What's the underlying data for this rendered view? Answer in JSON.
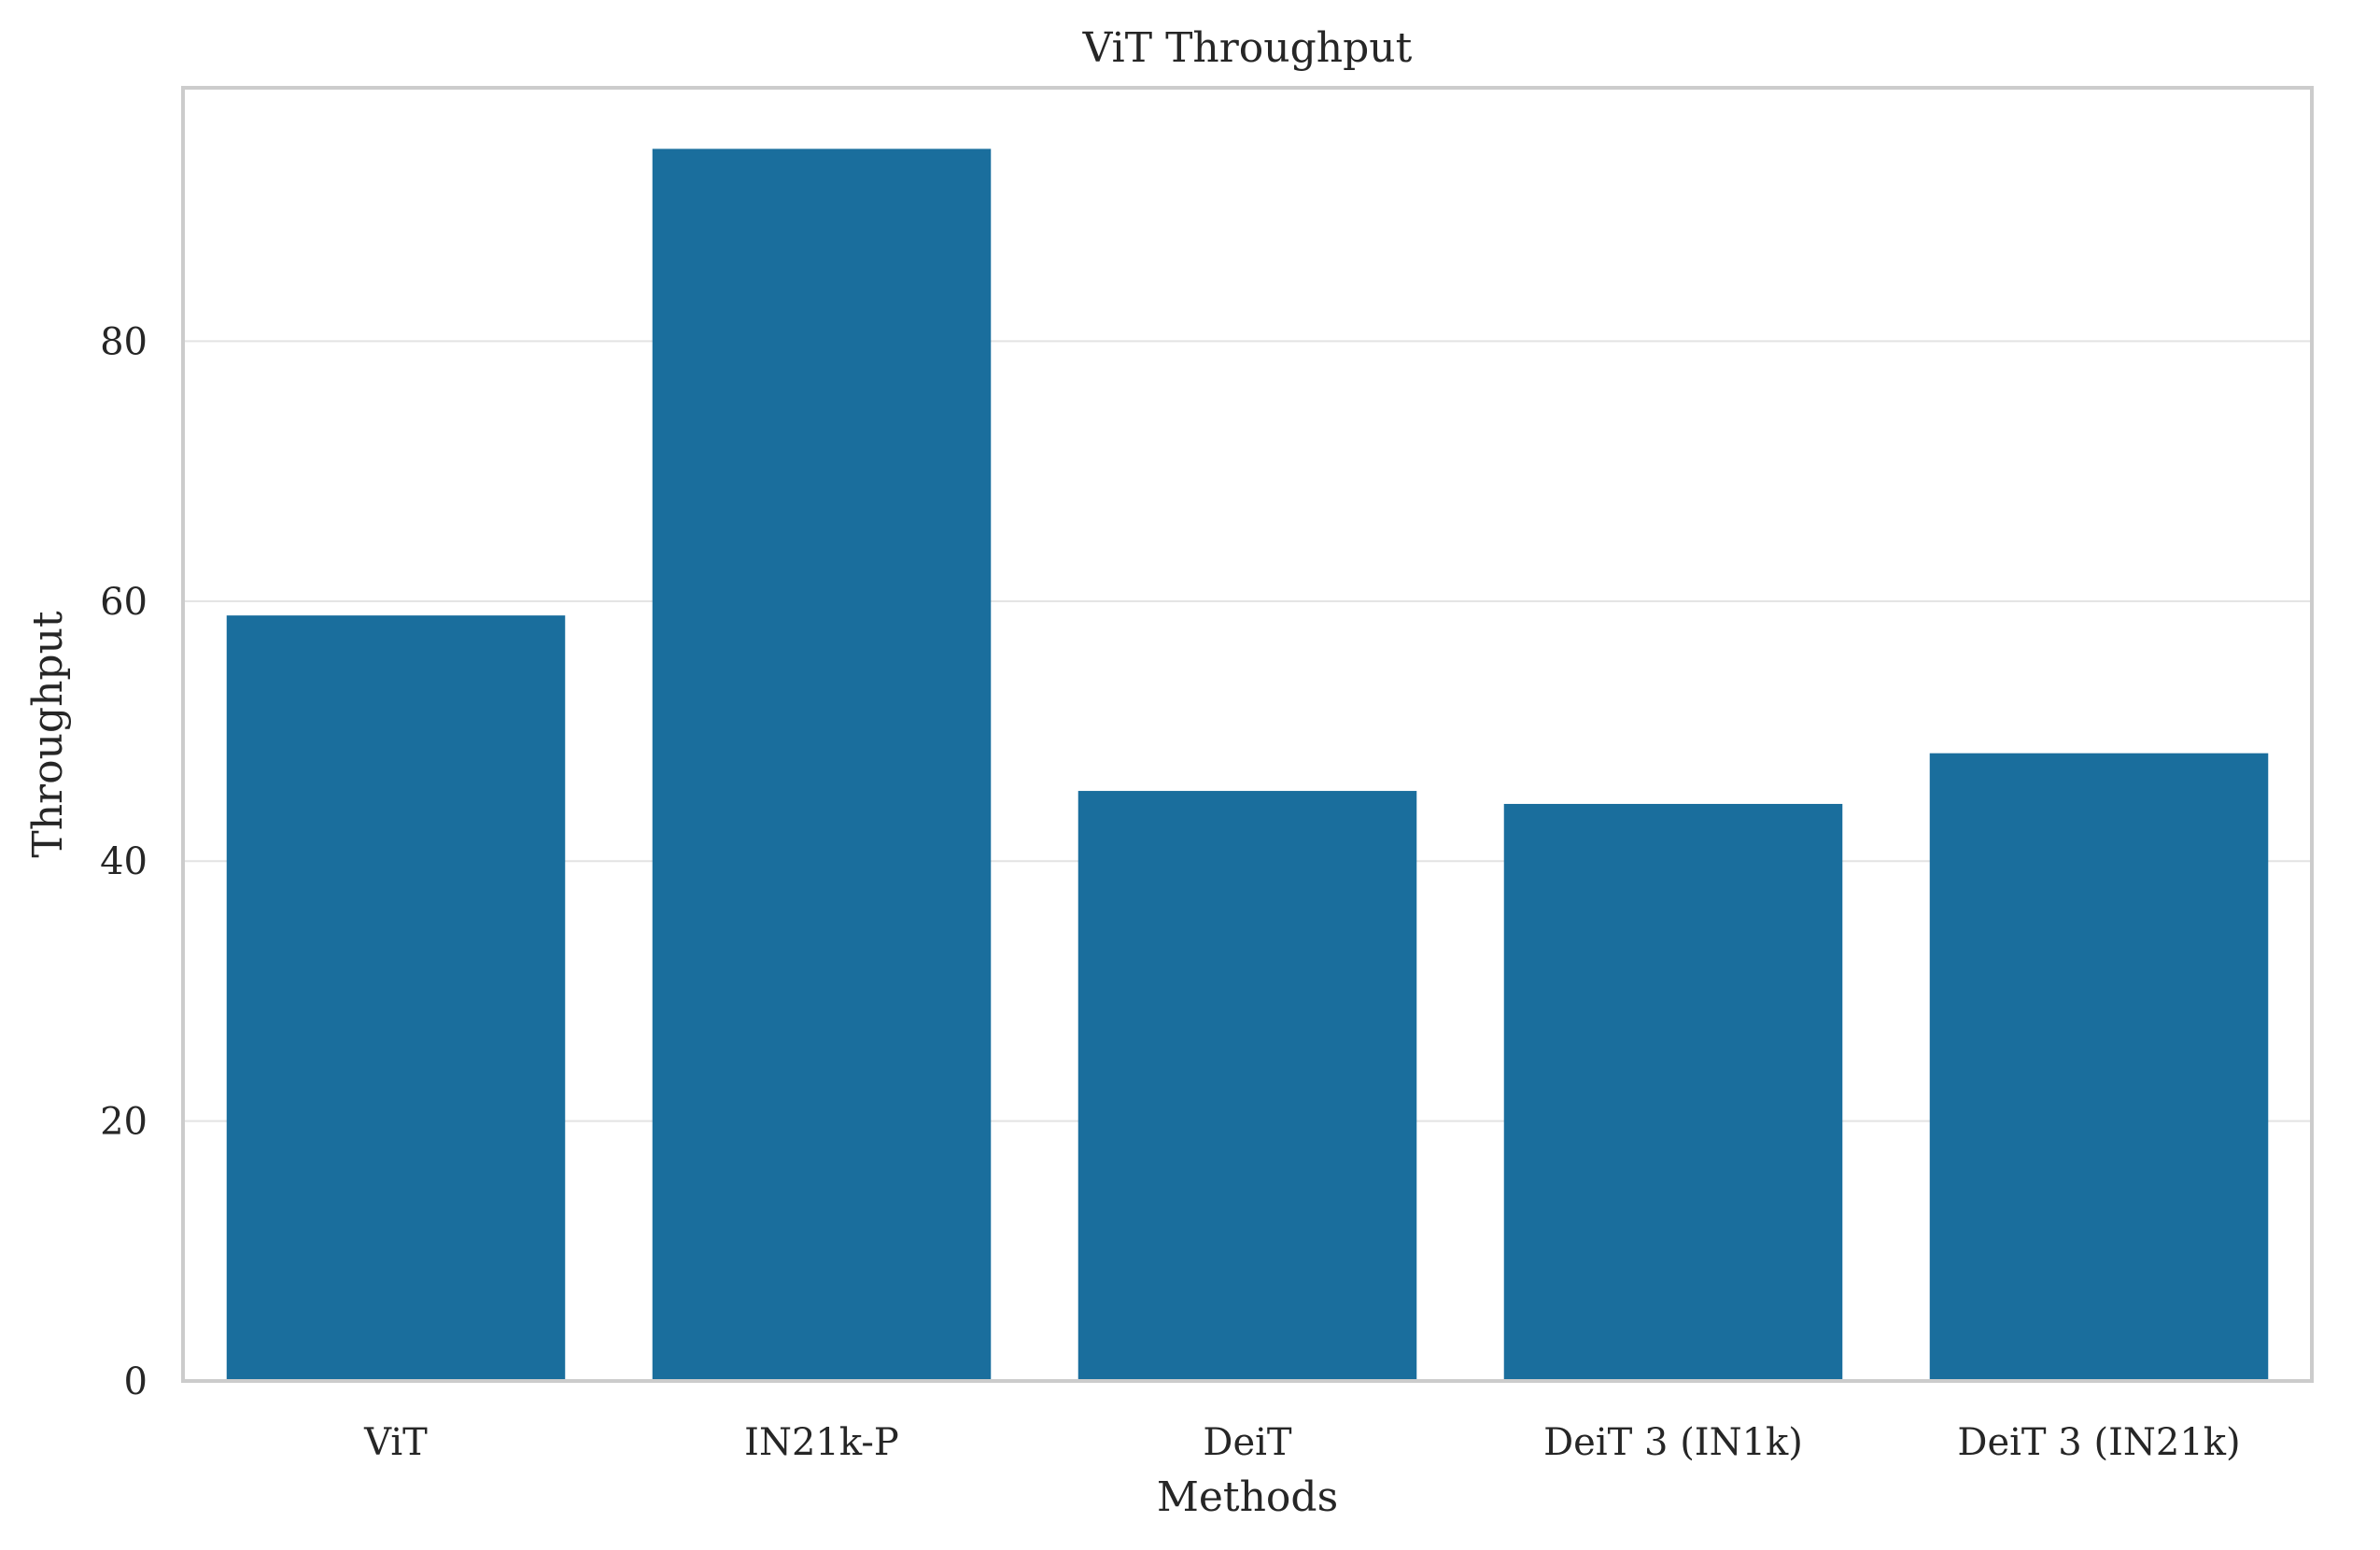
{
  "chart_data": {
    "type": "bar",
    "title": "ViT Throughput",
    "xlabel": "Methods",
    "ylabel": "Throughput",
    "categories": [
      "ViT",
      "IN21k-P",
      "DeiT",
      "DeiT 3 (IN1k)",
      "DeiT 3 (IN21k)"
    ],
    "values": [
      58.9,
      94.8,
      45.4,
      44.4,
      48.3
    ],
    "ylim": [
      0,
      99.5
    ],
    "yticks": [
      0,
      20,
      40,
      60,
      80
    ],
    "ytick_labels": [
      "0",
      "20",
      "40",
      "60",
      "80"
    ],
    "grid": "horizontal",
    "bar_color": "#1a6e9d"
  }
}
